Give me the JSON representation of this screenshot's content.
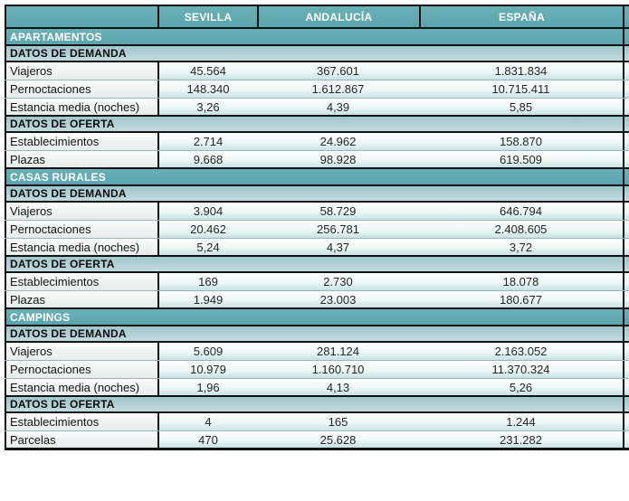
{
  "chart_data": {
    "type": "table",
    "columns": [
      "SEVILLA",
      "ANDALUCÍA",
      "ESPAÑA"
    ],
    "corner_label": "",
    "sections": [
      {
        "title": "APARTAMENTOS",
        "groups": [
          {
            "title": "DATOS DE DEMANDA",
            "rows": [
              {
                "label": "Viajeros",
                "values": [
                  "45.564",
                  "367.601",
                  "1.831.834"
                ]
              },
              {
                "label": "Pernoctaciones",
                "values": [
                  "148.340",
                  "1.612.867",
                  "10.715.411"
                ]
              },
              {
                "label": "Estancia media (noches)",
                "values": [
                  "3,26",
                  "4,39",
                  "5,85"
                ]
              }
            ]
          },
          {
            "title": "DATOS DE OFERTA",
            "rows": [
              {
                "label": "Establecimientos",
                "values": [
                  "2.714",
                  "24.962",
                  "158.870"
                ]
              },
              {
                "label": "Plazas",
                "values": [
                  "9.668",
                  "98.928",
                  "619.509"
                ]
              }
            ]
          }
        ]
      },
      {
        "title": "CASAS RURALES",
        "groups": [
          {
            "title": "DATOS DE DEMANDA",
            "rows": [
              {
                "label": "Viajeros",
                "values": [
                  "3.904",
                  "58.729",
                  "646.794"
                ]
              },
              {
                "label": "Pernoctaciones",
                "values": [
                  "20.462",
                  "256.781",
                  "2.408.605"
                ]
              },
              {
                "label": "Estancia media (noches)",
                "values": [
                  "5,24",
                  "4,37",
                  "3,72"
                ]
              }
            ]
          },
          {
            "title": "DATOS DE OFERTA",
            "rows": [
              {
                "label": "Establecimientos",
                "values": [
                  "169",
                  "2.730",
                  "18.078"
                ]
              },
              {
                "label": "Plazas",
                "values": [
                  "1.949",
                  "23.003",
                  "180.677"
                ]
              }
            ]
          }
        ]
      },
      {
        "title": "CAMPINGS",
        "groups": [
          {
            "title": "DATOS DE DEMANDA",
            "rows": [
              {
                "label": "Viajeros",
                "values": [
                  "5.609",
                  "281.124",
                  "2.163.052"
                ]
              },
              {
                "label": "Pernoctaciones",
                "values": [
                  "10.979",
                  "1.160.710",
                  "11.370.324"
                ]
              },
              {
                "label": "Estancia media (noches)",
                "values": [
                  "1,96",
                  "4,13",
                  "5,26"
                ]
              }
            ]
          },
          {
            "title": "DATOS DE OFERTA",
            "rows": [
              {
                "label": "Establecimientos",
                "values": [
                  "4",
                  "165",
                  "1.244"
                ]
              },
              {
                "label": "Parcelas",
                "values": [
                  "470",
                  "25.628",
                  "231.282"
                ]
              }
            ]
          }
        ]
      }
    ],
    "colors": {
      "teal_header": "#61a9b1",
      "subheader_top": "#a0c7cb",
      "subheader_bottom": "#c1dadc",
      "data_row_bottom": "#c8e2e4",
      "border": "#121212",
      "header_text": "#ffffff"
    },
    "layout": {
      "grid": "off",
      "legend": "none"
    }
  }
}
